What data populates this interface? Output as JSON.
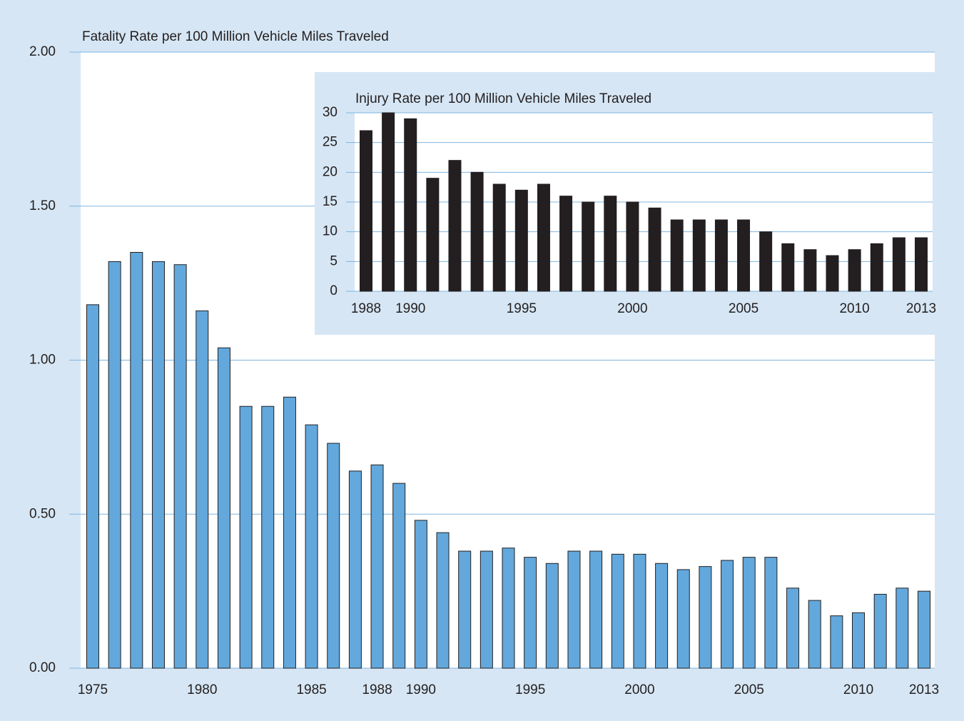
{
  "chart_data": [
    {
      "type": "bar",
      "title": "Fatality Rate per 100 Million Vehicle Miles Traveled",
      "categories": [
        "1975",
        null,
        null,
        null,
        null,
        "1980",
        null,
        null,
        null,
        null,
        "1985",
        null,
        null,
        "1988",
        null,
        "1990",
        null,
        null,
        null,
        null,
        "1995",
        null,
        null,
        null,
        null,
        "2000",
        null,
        null,
        null,
        null,
        "2005",
        null,
        null,
        null,
        null,
        "2010",
        null,
        null,
        "2013"
      ],
      "values": [
        1.18,
        1.32,
        1.35,
        1.32,
        1.31,
        1.16,
        1.04,
        0.85,
        0.85,
        0.88,
        0.79,
        0.73,
        0.64,
        0.66,
        0.6,
        0.48,
        0.44,
        0.38,
        0.38,
        0.39,
        0.36,
        0.34,
        0.38,
        0.38,
        0.37,
        0.37,
        0.34,
        0.32,
        0.33,
        0.35,
        0.36,
        0.36,
        0.26,
        0.22,
        0.17,
        0.18,
        0.24,
        0.26,
        0.25
      ],
      "color": "#62a8dc",
      "ylim": [
        0,
        2
      ],
      "yticks": [
        {
          "value": 0,
          "label": "0.00"
        },
        {
          "value": 0.5,
          "label": "0.50"
        },
        {
          "value": 1,
          "label": "1.00"
        },
        {
          "value": 1.5,
          "label": "1.50"
        },
        {
          "value": 2,
          "label": "2.00"
        }
      ],
      "grid": true
    },
    {
      "type": "bar",
      "title": "Injury Rate per 100 Million Vehicle Miles Traveled",
      "categories": [
        "1988",
        null,
        "1990",
        null,
        null,
        null,
        null,
        "1995",
        null,
        null,
        null,
        null,
        "2000",
        null,
        null,
        null,
        null,
        "2005",
        null,
        null,
        null,
        null,
        "2010",
        null,
        null,
        "2013"
      ],
      "values": [
        27,
        30,
        29,
        19,
        22,
        20,
        18,
        17,
        18,
        16,
        15,
        16,
        15,
        14,
        12,
        12,
        12,
        12,
        10,
        8,
        7,
        6,
        7,
        8,
        9,
        9
      ],
      "color": "#231f20",
      "ylim": [
        0,
        30
      ],
      "yticks": [
        0,
        5,
        10,
        15,
        20,
        25,
        30
      ],
      "grid": true
    }
  ]
}
